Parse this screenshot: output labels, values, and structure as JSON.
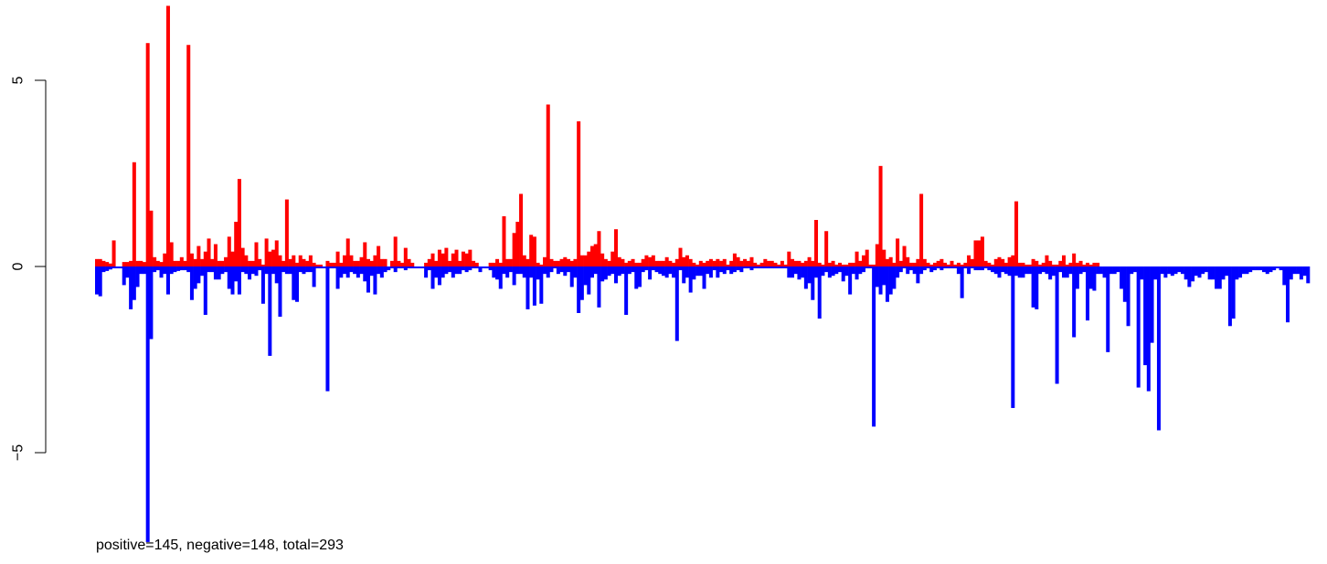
{
  "chart_data": {
    "type": "bar",
    "title": "",
    "xlabel": "",
    "ylabel": "",
    "caption": "positive=145, negative=148, total=293",
    "ylim": [
      -7.5,
      7.1
    ],
    "yticks": [
      -5,
      0,
      5
    ],
    "ytick_labels": [
      "−5",
      "0",
      "5"
    ],
    "grid": false,
    "legend": "none",
    "colors": {
      "positive": "#ff0000",
      "negative": "#0000ff"
    },
    "series": [
      {
        "name": "",
        "color": "#ff0000",
        "values": [
          0.2,
          0.2,
          0.15,
          0.12,
          0.08,
          0.7,
          0,
          0,
          0.12,
          0.12,
          0.15,
          2.8,
          0.15,
          0.15,
          0.12,
          6,
          1.5,
          0.25,
          0.15,
          0.12,
          0.35,
          7,
          0.65,
          0.15,
          0.15,
          0.25,
          0.15,
          5.95,
          0.35,
          0.2,
          0.55,
          0.2,
          0.4,
          0.75,
          0.2,
          0.6,
          0.15,
          0.15,
          0.25,
          0.8,
          0.4,
          1.2,
          2.35,
          0.5,
          0.3,
          0.15,
          0.15,
          0.65,
          0.2,
          0.05,
          0.75,
          0.4,
          0.45,
          0.7,
          0.3,
          0.15,
          1.8,
          0.2,
          0.3,
          0.1,
          0.3,
          0.2,
          0.15,
          0.3,
          0.1,
          0.05,
          0.05,
          0,
          0.15,
          0.1,
          0.1,
          0.4,
          0.1,
          0.3,
          0.75,
          0.3,
          0.15,
          0.15,
          0.25,
          0.65,
          0.2,
          0.15,
          0.3,
          0.55,
          0.2,
          0.2,
          0,
          0.15,
          0.8,
          0.15,
          0.1,
          0.5,
          0.2,
          0.1,
          0,
          0,
          0,
          0.1,
          0.2,
          0.35,
          0.15,
          0.45,
          0.35,
          0.5,
          0.15,
          0.35,
          0.45,
          0.15,
          0.4,
          0.35,
          0.45,
          0.15,
          0.1,
          0,
          0,
          0,
          0.1,
          0.1,
          0.2,
          0.1,
          1.35,
          0.2,
          0.2,
          0.9,
          1.2,
          1.95,
          0.3,
          0.2,
          0.85,
          0.8,
          0.1,
          0.05,
          0.25,
          4.35,
          0.2,
          0.15,
          0.15,
          0.2,
          0.25,
          0.2,
          0.15,
          0.2,
          3.9,
          0.3,
          0.3,
          0.4,
          0.55,
          0.6,
          0.95,
          0.35,
          0.2,
          0.15,
          0.4,
          1,
          0.25,
          0.2,
          0.1,
          0.15,
          0.2,
          0.1,
          0.1,
          0.2,
          0.3,
          0.25,
          0.3,
          0.15,
          0.15,
          0.15,
          0.25,
          0.15,
          0.1,
          0.2,
          0.5,
          0.25,
          0.3,
          0.2,
          0.1,
          0.05,
          0.15,
          0.1,
          0.15,
          0.2,
          0.15,
          0.2,
          0.15,
          0.2,
          0.05,
          0.15,
          0.35,
          0.25,
          0.15,
          0.2,
          0.15,
          0.25,
          0.1,
          0.05,
          0.1,
          0.2,
          0.15,
          0.15,
          0.1,
          0.05,
          0.15,
          0.05,
          0.4,
          0.2,
          0.15,
          0.15,
          0.1,
          0.15,
          0.25,
          0.15,
          1.25,
          0.1,
          0.05,
          0.95,
          0.1,
          0.15,
          0.05,
          0.1,
          0.05,
          0.05,
          0.1,
          0.1,
          0.4,
          0.15,
          0.3,
          0.45,
          0.05,
          0.05,
          0.6,
          2.7,
          0.45,
          0.2,
          0.25,
          0.1,
          0.75,
          0.15,
          0.55,
          0.25,
          0.1,
          0.1,
          0.2,
          1.95,
          0.2,
          0.1,
          0.05,
          0.1,
          0.15,
          0.2,
          0.1,
          0.05,
          0.15,
          0.05,
          0.1,
          0.05,
          0.1,
          0.3,
          0.2,
          0.7,
          0.7,
          0.8,
          0.15,
          0.1,
          0.05,
          0.2,
          0.25,
          0.2,
          0.1,
          0.25,
          0.3,
          1.75,
          0.1,
          0.1,
          0.05,
          0.05,
          0.2,
          0.15,
          0.05,
          0.1,
          0.3,
          0.15,
          0.05,
          0.05,
          0.15,
          0.3,
          0.05,
          0.1,
          0.35,
          0.1,
          0.15,
          0.05,
          0.1,
          0.05,
          0.1,
          0.1
        ]
      }
    ],
    "negative_series_values": [
      -0.75,
      -0.8,
      -0.15,
      -0.12,
      -0.08,
      -0.05,
      -0.05,
      -0.05,
      -0.5,
      -0.3,
      -1.15,
      -0.9,
      -0.55,
      -0.2,
      -0.2,
      -7.4,
      -1.95,
      -0.15,
      -0.1,
      -0.3,
      -0.2,
      -0.75,
      -0.2,
      -0.15,
      -0.12,
      -0.1,
      -0.1,
      -0.15,
      -0.9,
      -0.6,
      -0.45,
      -0.25,
      -1.3,
      -0.15,
      -0.15,
      -0.35,
      -0.35,
      -0.2,
      -0.15,
      -0.6,
      -0.75,
      -0.4,
      -0.75,
      -0.15,
      -0.2,
      -0.35,
      -0.2,
      -0.25,
      -0.1,
      -1,
      -0.2,
      -2.4,
      -0.2,
      -0.45,
      -1.35,
      -0.15,
      -0.2,
      -0.2,
      -0.9,
      -0.95,
      -0.15,
      -0.2,
      -0.15,
      -0.15,
      -0.55,
      -0.05,
      -0.05,
      -0.05,
      -3.35,
      -0.05,
      -0.05,
      -0.6,
      -0.3,
      -0.2,
      -0.3,
      -0.15,
      -0.2,
      -0.3,
      -0.2,
      -0.4,
      -0.7,
      -0.25,
      -0.75,
      -0.2,
      -0.3,
      -0.15,
      -0.1,
      -0.05,
      -0.15,
      -0.05,
      -0.05,
      -0.1,
      -0.05,
      -0.05,
      -0.05,
      -0.05,
      -0.05,
      -0.3,
      -0.1,
      -0.6,
      -0.3,
      -0.5,
      -0.3,
      -0.2,
      -0.15,
      -0.3,
      -0.2,
      -0.2,
      -0.1,
      -0.15,
      -0.1,
      -0.05,
      -0.05,
      -0.15,
      -0.05,
      -0.05,
      -0.1,
      -0.3,
      -0.35,
      -0.6,
      -0.2,
      -0.3,
      -0.15,
      -0.5,
      -0.2,
      -0.2,
      -0.3,
      -1.15,
      -0.3,
      -1.05,
      -0.35,
      -1,
      -0.2,
      -0.3,
      -0.15,
      -0.05,
      -0.2,
      -0.15,
      -0.25,
      -0.15,
      -0.55,
      -0.3,
      -1.25,
      -0.9,
      -0.5,
      -0.75,
      -0.3,
      -0.2,
      -1.1,
      -0.4,
      -0.35,
      -0.25,
      -0.2,
      -0.45,
      -0.25,
      -0.2,
      -1.3,
      -0.2,
      -0.15,
      -0.6,
      -0.55,
      -0.15,
      -0.1,
      -0.35,
      -0.1,
      -0.15,
      -0.2,
      -0.25,
      -0.3,
      -0.2,
      -0.3,
      -2,
      -0.1,
      -0.45,
      -0.3,
      -0.7,
      -0.35,
      -0.25,
      -0.25,
      -0.6,
      -0.2,
      -0.3,
      -0.1,
      -0.3,
      -0.15,
      -0.2,
      -0.1,
      -0.2,
      -0.15,
      -0.1,
      -0.15,
      -0.05,
      -0.05,
      -0.1,
      -0.05,
      -0.05,
      -0.05,
      -0.05,
      -0.05,
      -0.05,
      -0.05,
      -0.05,
      -0.05,
      -0.05,
      -0.3,
      -0.3,
      -0.2,
      -0.35,
      -0.3,
      -0.6,
      -0.45,
      -0.9,
      -0.3,
      -1.4,
      -0.25,
      -0.15,
      -0.3,
      -0.25,
      -0.2,
      -0.15,
      -0.4,
      -0.25,
      -0.75,
      -0.2,
      -0.35,
      -0.2,
      -0.15,
      -0.05,
      -0.05,
      -4.3,
      -0.55,
      -0.75,
      -0.5,
      -0.95,
      -0.75,
      -0.6,
      -0.3,
      -0.15,
      -0.05,
      -0.2,
      -0.1,
      -0.2,
      -0.45,
      -0.2,
      -0.1,
      -0.05,
      -0.15,
      -0.1,
      -0.05,
      -0.1,
      -0.05,
      -0.05,
      -0.05,
      -0.05,
      -0.2,
      -0.85,
      -0.05,
      -0.2,
      -0.05,
      -0.1,
      -0.1,
      -0.1,
      -0.05,
      -0.1,
      -0.15,
      -0.2,
      -0.3,
      -0.15,
      -0.2,
      -0.25,
      -3.8,
      -0.25,
      -0.3,
      -0.3,
      -0.2,
      -0.2,
      -1.1,
      -1.15,
      -0.2,
      -0.15,
      -0.2,
      -0.35,
      -0.25
    ],
    "negative_tail_values": [
      -3.15,
      -0.15,
      -0.3,
      -0.3,
      -0.2,
      -1.9,
      -0.6,
      -0.2,
      -0.15,
      -1.45,
      -0.6,
      -0.65,
      -0.2,
      -0.2,
      -0.3,
      -2.3,
      -0.2,
      -0.2,
      -0.15,
      -0.6,
      -0.95,
      -1.6,
      -0.2,
      -0.15,
      -3.25,
      -0.35,
      -2.65,
      -3.35,
      -2.05,
      -0.35,
      -4.4,
      -0.2,
      -0.3,
      -0.2,
      -0.25,
      -0.2,
      -0.15,
      -0.2,
      -0.35,
      -0.55,
      -0.4,
      -0.25,
      -0.3,
      -0.2,
      -0.15,
      -0.35,
      -0.35,
      -0.6,
      -0.6,
      -0.35,
      -0.25,
      -1.6,
      -1.4,
      -0.35,
      -0.3,
      -0.2,
      -0.2,
      -0.15,
      -0.1,
      -0.1,
      -0.1,
      -0.15,
      -0.2,
      -0.15,
      -0.1,
      -0.05,
      -0.1,
      -0.5,
      -1.5,
      -0.35,
      -0.2,
      -0.2,
      -0.35,
      -0.25,
      -0.45
    ]
  }
}
